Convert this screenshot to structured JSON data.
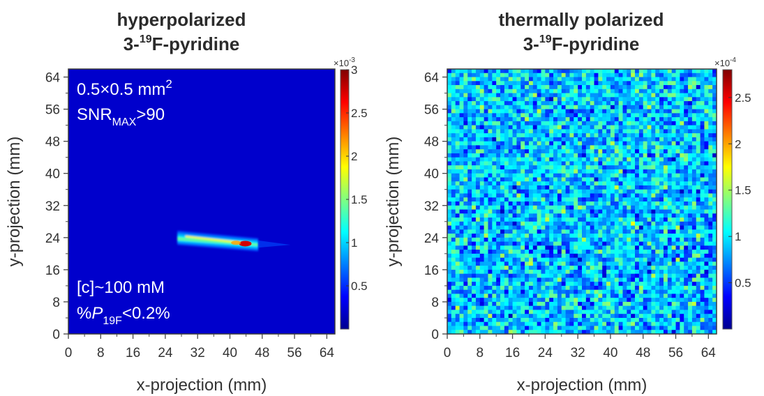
{
  "chart_data": [
    {
      "type": "heatmap",
      "title_line1": "hyperpolarized",
      "title_line2_prefix": "3-",
      "title_line2_sup": "19",
      "title_line2_suffix": "F-pyridine",
      "xlabel": "x-projection (mm)",
      "ylabel": "y-projection (mm)",
      "xticks": [
        "0",
        "8",
        "16",
        "24",
        "32",
        "40",
        "48",
        "56",
        "64"
      ],
      "yticks": [
        "0",
        "8",
        "16",
        "24",
        "32",
        "40",
        "48",
        "56",
        "64"
      ],
      "xlim": [
        0,
        66
      ],
      "ylim": [
        0,
        66
      ],
      "colorbar": {
        "exponent_base": "×10",
        "exponent_power": "-3",
        "ticks": [
          "0.5",
          "1",
          "1.5",
          "2",
          "2.5",
          "3"
        ],
        "tick_values": [
          0.5,
          1,
          1.5,
          2,
          2.5,
          3
        ],
        "range": [
          0,
          3
        ],
        "colormap": "jet"
      },
      "background_value": 0.05,
      "signal": {
        "description_value_peak": 2.9,
        "x_range": [
          27,
          47
        ],
        "y_range": [
          20.5,
          25.5
        ],
        "peak_x": 45,
        "peak_y": 22.5
      },
      "annotations": {
        "resolution_text": "0.5×0.5 mm",
        "resolution_sup": "2",
        "snr_main": "SNR",
        "snr_sub": "MAX",
        "snr_rest": ">90",
        "conc_text": "[c]~100 mM",
        "pol_prefix": "%",
        "pol_italic": "P",
        "pol_sub": "19F",
        "pol_rest": "<0.2%"
      }
    },
    {
      "type": "heatmap",
      "title_line1": "thermally polarized",
      "title_line2_prefix": "3-",
      "title_line2_sup": "19",
      "title_line2_suffix": "F-pyridine",
      "xlabel": "x-projection (mm)",
      "ylabel": "y-projection (mm)",
      "xticks": [
        "0",
        "8",
        "16",
        "24",
        "32",
        "40",
        "48",
        "56",
        "64"
      ],
      "yticks": [
        "0",
        "8",
        "16",
        "24",
        "32",
        "40",
        "48",
        "56",
        "64"
      ],
      "xlim": [
        0,
        66
      ],
      "ylim": [
        0,
        66
      ],
      "colorbar": {
        "exponent_base": "×10",
        "exponent_power": "-4",
        "ticks": [
          "0.5",
          "1",
          "1.5",
          "2",
          "2.5"
        ],
        "tick_values": [
          0.5,
          1,
          1.5,
          2,
          2.5
        ],
        "range": [
          0,
          2.8
        ],
        "colormap": "jet"
      },
      "noise": {
        "mean": 0.9,
        "spread": 0.5
      }
    }
  ],
  "colors": {
    "jet_dark_blue": "#00008f",
    "background_blue": "#0a1fb8"
  }
}
